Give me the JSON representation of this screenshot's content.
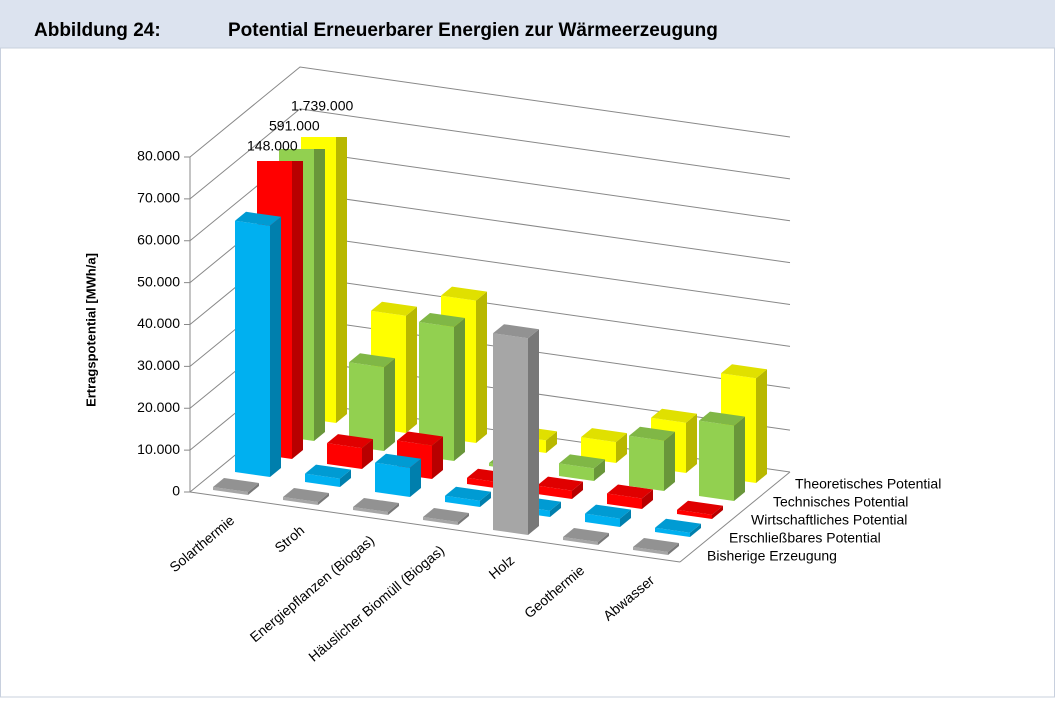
{
  "header": {
    "label": "Abbildung 24:",
    "title": "Potential Erneuerbarer Energien zur Wärmeerzeugung"
  },
  "chart_data": {
    "type": "bar3d",
    "y_label": "Ertragspotential [MWh/a]",
    "categories": [
      "Solarthermie",
      "Stroh",
      "Energiepflanzen (Biogas)",
      "Häuslicher Biomüll (Biogas)",
      "Holz",
      "Geothermie",
      "Abwasser"
    ],
    "series": [
      {
        "name": "Bisherige Erzeugung",
        "color": "#a6a6a6",
        "values": [
          0,
          0,
          0,
          0,
          47000,
          0,
          0
        ]
      },
      {
        "name": "Erschließbares Potential",
        "color": "#00b0f0",
        "values": [
          60000,
          2000,
          7000,
          1500,
          1500,
          2000,
          1000
        ]
      },
      {
        "name": "Wirtschaftliches Potential",
        "color": "#ff0000",
        "values": [
          148000,
          5000,
          8000,
          1500,
          2000,
          2500,
          1000
        ],
        "value_labels": [
          "148.000",
          null,
          null,
          null,
          null,
          null,
          null
        ]
      },
      {
        "name": "Technisches Potential",
        "color": "#92d050",
        "values": [
          591000,
          20000,
          32000,
          0,
          3000,
          12000,
          18000
        ],
        "value_labels": [
          "591.000",
          null,
          null,
          null,
          null,
          null,
          null
        ]
      },
      {
        "name": "Theoretisches Potential",
        "color": "#ffff00",
        "values": [
          1739000,
          28000,
          34000,
          3000,
          5000,
          12000,
          25000
        ],
        "value_labels": [
          "1.739.000",
          null,
          null,
          null,
          null,
          null,
          null
        ]
      }
    ],
    "ylim": [
      0,
      80000
    ],
    "yticks": [
      0,
      {
        "value": 10000,
        "label": "10.000"
      },
      {
        "value": 20000,
        "label": "20.000"
      },
      {
        "value": 30000,
        "label": "30.000"
      },
      {
        "value": 40000,
        "label": "40.000"
      },
      {
        "value": 50000,
        "label": "50.000"
      },
      {
        "value": 60000,
        "label": "60.000"
      },
      {
        "value": 70000,
        "label": "70.000"
      },
      {
        "value": 80000,
        "label": "80.000"
      }
    ],
    "grid": true
  }
}
